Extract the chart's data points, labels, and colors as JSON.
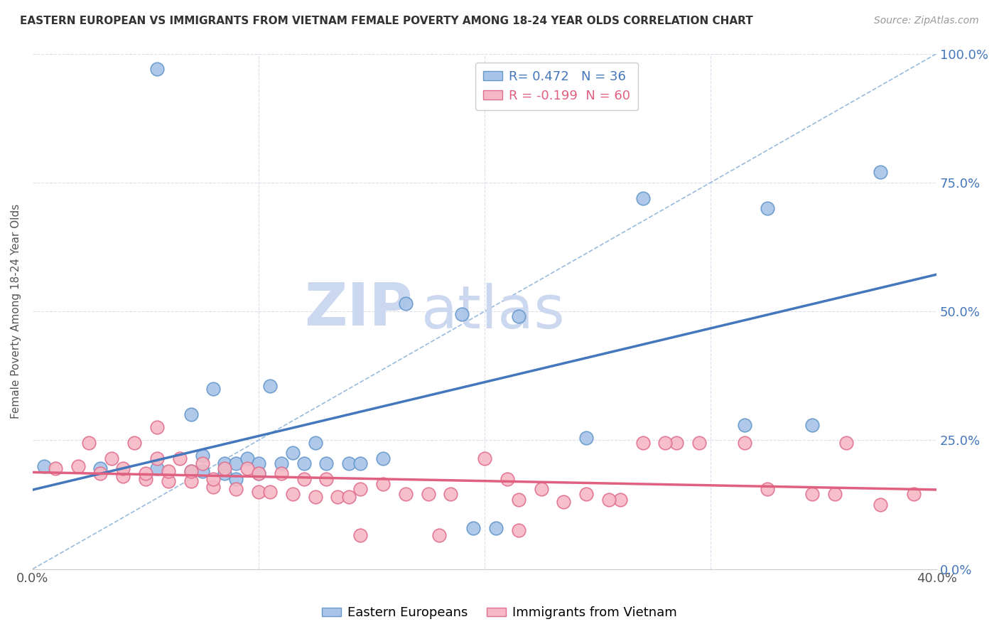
{
  "title": "EASTERN EUROPEAN VS IMMIGRANTS FROM VIETNAM FEMALE POVERTY AMONG 18-24 YEAR OLDS CORRELATION CHART",
  "source": "Source: ZipAtlas.com",
  "ylabel": "Female Poverty Among 18-24 Year Olds",
  "xlim": [
    0.0,
    0.4
  ],
  "ylim": [
    0.0,
    1.0
  ],
  "xticks": [
    0.0,
    0.1,
    0.2,
    0.3,
    0.4
  ],
  "xticklabels": [
    "0.0%",
    "",
    "",
    "",
    "40.0%"
  ],
  "yticks": [
    0.0,
    0.25,
    0.5,
    0.75,
    1.0
  ],
  "yticklabels_left": [
    "",
    "",
    "",
    "",
    ""
  ],
  "yticklabels_right": [
    "0.0%",
    "25.0%",
    "50.0%",
    "75.0%",
    "100.0%"
  ],
  "blue_R": 0.472,
  "blue_N": 36,
  "pink_R": -0.199,
  "pink_N": 60,
  "blue_color": "#a8c4e8",
  "pink_color": "#f5b8c4",
  "blue_edge_color": "#6699cc",
  "pink_edge_color": "#e07090",
  "blue_line_color": "#4477bb",
  "pink_line_color": "#e06080",
  "ref_line_color": "#99bbdd",
  "watermark_zip": "ZIP",
  "watermark_atlas": "atlas",
  "watermark_color": "#ccd8f0",
  "background_color": "#ffffff",
  "grid_color": "#ddddee",
  "blue_points_x": [
    0.005,
    0.03,
    0.055,
    0.055,
    0.07,
    0.07,
    0.075,
    0.075,
    0.08,
    0.085,
    0.085,
    0.09,
    0.09,
    0.095,
    0.1,
    0.1,
    0.105,
    0.11,
    0.115,
    0.12,
    0.125,
    0.13,
    0.14,
    0.145,
    0.155,
    0.165,
    0.19,
    0.195,
    0.205,
    0.215,
    0.245,
    0.27,
    0.315,
    0.325,
    0.345,
    0.375
  ],
  "blue_points_y": [
    0.2,
    0.195,
    0.195,
    0.97,
    0.19,
    0.3,
    0.19,
    0.22,
    0.35,
    0.185,
    0.205,
    0.175,
    0.205,
    0.215,
    0.185,
    0.205,
    0.355,
    0.205,
    0.225,
    0.205,
    0.245,
    0.205,
    0.205,
    0.205,
    0.215,
    0.515,
    0.495,
    0.08,
    0.08,
    0.49,
    0.255,
    0.72,
    0.28,
    0.7,
    0.28,
    0.77
  ],
  "pink_points_x": [
    0.01,
    0.02,
    0.025,
    0.03,
    0.035,
    0.04,
    0.04,
    0.045,
    0.05,
    0.05,
    0.055,
    0.055,
    0.06,
    0.06,
    0.065,
    0.07,
    0.07,
    0.075,
    0.08,
    0.08,
    0.085,
    0.09,
    0.095,
    0.1,
    0.1,
    0.105,
    0.11,
    0.115,
    0.12,
    0.125,
    0.13,
    0.135,
    0.14,
    0.145,
    0.155,
    0.165,
    0.175,
    0.185,
    0.2,
    0.21,
    0.215,
    0.225,
    0.235,
    0.245,
    0.26,
    0.27,
    0.285,
    0.295,
    0.325,
    0.345,
    0.36,
    0.375,
    0.39,
    0.215,
    0.28,
    0.315,
    0.355,
    0.145,
    0.18,
    0.255
  ],
  "pink_points_y": [
    0.195,
    0.2,
    0.245,
    0.185,
    0.215,
    0.18,
    0.195,
    0.245,
    0.175,
    0.185,
    0.215,
    0.275,
    0.17,
    0.19,
    0.215,
    0.17,
    0.19,
    0.205,
    0.16,
    0.175,
    0.195,
    0.155,
    0.195,
    0.15,
    0.185,
    0.15,
    0.185,
    0.145,
    0.175,
    0.14,
    0.175,
    0.14,
    0.14,
    0.155,
    0.165,
    0.145,
    0.145,
    0.145,
    0.215,
    0.175,
    0.135,
    0.155,
    0.13,
    0.145,
    0.135,
    0.245,
    0.245,
    0.245,
    0.155,
    0.145,
    0.245,
    0.125,
    0.145,
    0.075,
    0.245,
    0.245,
    0.145,
    0.065,
    0.065,
    0.135
  ],
  "figsize": [
    14.06,
    8.92
  ],
  "dpi": 100
}
